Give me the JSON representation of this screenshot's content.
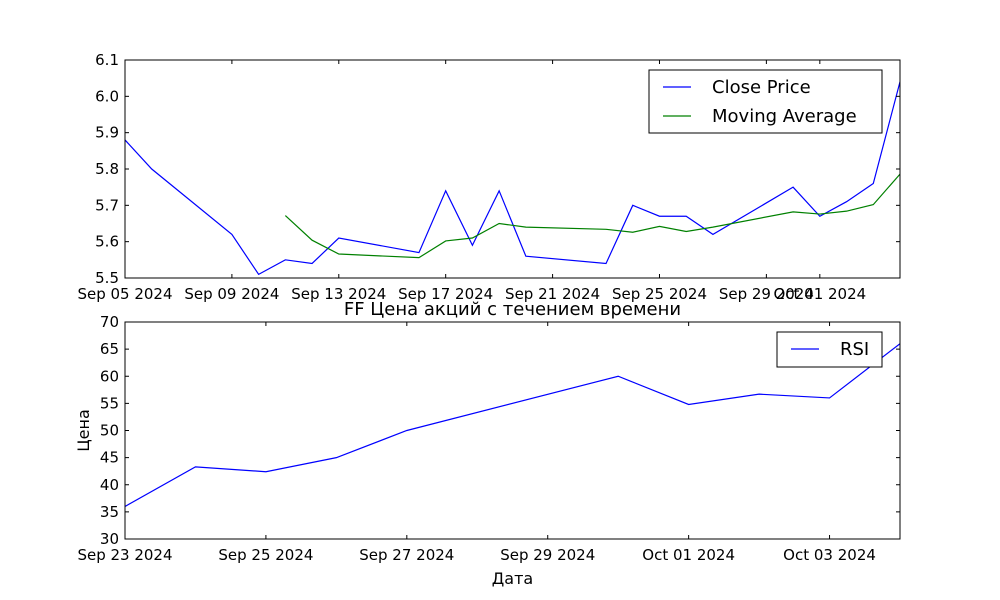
{
  "chart_data": [
    {
      "type": "line",
      "title": "",
      "xlabel": "",
      "ylabel": "",
      "xlim": [
        "2024-09-05",
        "2024-10-04"
      ],
      "ylim": [
        5.5,
        6.1
      ],
      "yticks": [
        "5.5",
        "5.6",
        "5.7",
        "5.8",
        "5.9",
        "6.0",
        "6.1"
      ],
      "xticks": [
        {
          "date": "2024-09-05",
          "label": "Sep 05 2024"
        },
        {
          "date": "2024-09-09",
          "label": "Sep 09 2024"
        },
        {
          "date": "2024-09-13",
          "label": "Sep 13 2024"
        },
        {
          "date": "2024-09-17",
          "label": "Sep 17 2024"
        },
        {
          "date": "2024-09-21",
          "label": "Sep 21 2024"
        },
        {
          "date": "2024-09-25",
          "label": "Sep 25 2024"
        },
        {
          "date": "2024-09-29",
          "label": "Sep 29 2024"
        },
        {
          "date": "2024-10-01",
          "label": "Oct 01 2024"
        }
      ],
      "legend_position": "top-right",
      "series": [
        {
          "name": "Close Price",
          "color": "#0000ff",
          "points": [
            [
              "2024-09-05",
              5.88
            ],
            [
              "2024-09-06",
              5.8
            ],
            [
              "2024-09-09",
              5.62
            ],
            [
              "2024-09-10",
              5.51
            ],
            [
              "2024-09-11",
              5.55
            ],
            [
              "2024-09-12",
              5.54
            ],
            [
              "2024-09-13",
              5.61
            ],
            [
              "2024-09-16",
              5.57
            ],
            [
              "2024-09-17",
              5.74
            ],
            [
              "2024-09-18",
              5.59
            ],
            [
              "2024-09-19",
              5.74
            ],
            [
              "2024-09-20",
              5.56
            ],
            [
              "2024-09-23",
              5.54
            ],
            [
              "2024-09-24",
              5.7
            ],
            [
              "2024-09-25",
              5.67
            ],
            [
              "2024-09-26",
              5.67
            ],
            [
              "2024-09-27",
              5.62
            ],
            [
              "2024-09-30",
              5.75
            ],
            [
              "2024-10-01",
              5.67
            ],
            [
              "2024-10-02",
              5.71
            ],
            [
              "2024-10-03",
              5.76
            ],
            [
              "2024-10-04",
              6.04
            ]
          ]
        },
        {
          "name": "Moving Average",
          "color": "#008000",
          "points": [
            [
              "2024-09-11",
              5.672
            ],
            [
              "2024-09-12",
              5.604
            ],
            [
              "2024-09-13",
              5.566
            ],
            [
              "2024-09-16",
              5.556
            ],
            [
              "2024-09-17",
              5.602
            ],
            [
              "2024-09-18",
              5.61
            ],
            [
              "2024-09-19",
              5.65
            ],
            [
              "2024-09-20",
              5.64
            ],
            [
              "2024-09-23",
              5.634
            ],
            [
              "2024-09-24",
              5.626
            ],
            [
              "2024-09-25",
              5.642
            ],
            [
              "2024-09-26",
              5.628
            ],
            [
              "2024-09-27",
              5.64
            ],
            [
              "2024-09-30",
              5.682
            ],
            [
              "2024-10-01",
              5.676
            ],
            [
              "2024-10-02",
              5.684
            ],
            [
              "2024-10-03",
              5.702
            ],
            [
              "2024-10-04",
              5.786
            ]
          ]
        }
      ]
    },
    {
      "type": "line",
      "title": "FF Цена акций с течением времени",
      "xlabel": "Дата",
      "ylabel": "Цена",
      "xlim": [
        "2024-09-23",
        "2024-10-04"
      ],
      "ylim": [
        30,
        70
      ],
      "yticks": [
        "30",
        "35",
        "40",
        "45",
        "50",
        "55",
        "60",
        "65",
        "70"
      ],
      "xticks": [
        {
          "date": "2024-09-23",
          "label": "Sep 23 2024"
        },
        {
          "date": "2024-09-25",
          "label": "Sep 25 2024"
        },
        {
          "date": "2024-09-27",
          "label": "Sep 27 2024"
        },
        {
          "date": "2024-09-29",
          "label": "Sep 29 2024"
        },
        {
          "date": "2024-10-01",
          "label": "Oct 01 2024"
        },
        {
          "date": "2024-10-03",
          "label": "Oct 03 2024"
        }
      ],
      "legend_position": "top-right",
      "series": [
        {
          "name": "RSI",
          "color": "#0000ff",
          "points": [
            [
              "2024-09-23",
              36.0
            ],
            [
              "2024-09-24",
              43.3
            ],
            [
              "2024-09-25",
              42.4
            ],
            [
              "2024-09-26",
              45.0
            ],
            [
              "2024-09-27",
              50.0
            ],
            [
              "2024-09-30",
              60.0
            ],
            [
              "2024-10-01",
              54.8
            ],
            [
              "2024-10-02",
              56.7
            ],
            [
              "2024-10-03",
              56.0
            ],
            [
              "2024-10-04",
              66.0
            ]
          ]
        }
      ]
    }
  ]
}
